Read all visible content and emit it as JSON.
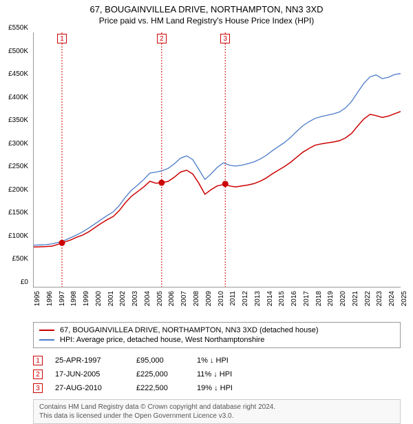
{
  "title": {
    "main": "67, BOUGAINVILLEA DRIVE, NORTHAMPTON, NN3 3XD",
    "sub": "Price paid vs. HM Land Registry's House Price Index (HPI)"
  },
  "chart": {
    "type": "line",
    "x_years": [
      1995,
      1996,
      1997,
      1998,
      1999,
      2000,
      2001,
      2002,
      2003,
      2004,
      2005,
      2006,
      2007,
      2008,
      2009,
      2010,
      2011,
      2012,
      2013,
      2014,
      2015,
      2016,
      2017,
      2018,
      2019,
      2020,
      2021,
      2022,
      2023,
      2024,
      2025
    ],
    "xlim": [
      1995,
      2025
    ],
    "ylim": [
      0,
      550000
    ],
    "ytick_step": 50000,
    "y_labels": [
      "£0",
      "£50K",
      "£100K",
      "£150K",
      "£200K",
      "£250K",
      "£300K",
      "£350K",
      "£400K",
      "£450K",
      "£500K",
      "£550K"
    ],
    "grid_color": "#999999",
    "background_color": "#ffffff",
    "series": [
      {
        "name": "property",
        "label": "67, BOUGAINVILLEA DRIVE, NORTHAMPTON, NN3 3XD (detached house)",
        "color": "#cc0000",
        "stroke_width": 1.5,
        "points": [
          [
            1995.0,
            86000
          ],
          [
            1995.5,
            86500
          ],
          [
            1996.0,
            87000
          ],
          [
            1996.5,
            88000
          ],
          [
            1997.0,
            92000
          ],
          [
            1997.3,
            95000
          ],
          [
            1998.0,
            101000
          ],
          [
            1998.5,
            107000
          ],
          [
            1999.0,
            112000
          ],
          [
            1999.5,
            119000
          ],
          [
            2000.0,
            128000
          ],
          [
            2000.5,
            137000
          ],
          [
            2001.0,
            145000
          ],
          [
            2001.5,
            152000
          ],
          [
            2002.0,
            165000
          ],
          [
            2002.5,
            182000
          ],
          [
            2003.0,
            196000
          ],
          [
            2003.5,
            206000
          ],
          [
            2004.0,
            216000
          ],
          [
            2004.5,
            228000
          ],
          [
            2005.0,
            224000
          ],
          [
            2005.5,
            225000
          ],
          [
            2006.0,
            228000
          ],
          [
            2006.5,
            237000
          ],
          [
            2007.0,
            248000
          ],
          [
            2007.5,
            252000
          ],
          [
            2008.0,
            244000
          ],
          [
            2008.5,
            224000
          ],
          [
            2009.0,
            200000
          ],
          [
            2009.5,
            210000
          ],
          [
            2010.0,
            218000
          ],
          [
            2010.5,
            221000
          ],
          [
            2010.66,
            222500
          ],
          [
            2011.0,
            218000
          ],
          [
            2011.5,
            216000
          ],
          [
            2012.0,
            218000
          ],
          [
            2012.5,
            220000
          ],
          [
            2013.0,
            223000
          ],
          [
            2013.5,
            228000
          ],
          [
            2014.0,
            235000
          ],
          [
            2014.5,
            244000
          ],
          [
            2015.0,
            252000
          ],
          [
            2015.5,
            260000
          ],
          [
            2016.0,
            269000
          ],
          [
            2016.5,
            280000
          ],
          [
            2017.0,
            291000
          ],
          [
            2017.5,
            299000
          ],
          [
            2018.0,
            306000
          ],
          [
            2018.5,
            309000
          ],
          [
            2019.0,
            311000
          ],
          [
            2019.5,
            313000
          ],
          [
            2020.0,
            316000
          ],
          [
            2020.5,
            322000
          ],
          [
            2021.0,
            332000
          ],
          [
            2021.5,
            348000
          ],
          [
            2022.0,
            363000
          ],
          [
            2022.5,
            373000
          ],
          [
            2023.0,
            370000
          ],
          [
            2023.5,
            366000
          ],
          [
            2024.0,
            369000
          ],
          [
            2024.5,
            374000
          ],
          [
            2025.0,
            379000
          ]
        ]
      },
      {
        "name": "hpi",
        "label": "HPI: Average price, detached house, West Northamptonshire",
        "color": "#4a7ac8",
        "stroke_width": 1.3,
        "points": [
          [
            1995.0,
            90000
          ],
          [
            1995.5,
            90500
          ],
          [
            1996.0,
            91000
          ],
          [
            1996.5,
            93000
          ],
          [
            1997.0,
            96000
          ],
          [
            1997.5,
            100000
          ],
          [
            1998.0,
            106000
          ],
          [
            1998.5,
            112000
          ],
          [
            1999.0,
            119000
          ],
          [
            1999.5,
            127000
          ],
          [
            2000.0,
            136000
          ],
          [
            2000.5,
            145000
          ],
          [
            2001.0,
            154000
          ],
          [
            2001.5,
            162000
          ],
          [
            2002.0,
            176000
          ],
          [
            2002.5,
            194000
          ],
          [
            2003.0,
            209000
          ],
          [
            2003.5,
            220000
          ],
          [
            2004.0,
            232000
          ],
          [
            2004.5,
            246000
          ],
          [
            2005.0,
            248000
          ],
          [
            2005.5,
            251000
          ],
          [
            2006.0,
            256000
          ],
          [
            2006.5,
            266000
          ],
          [
            2007.0,
            278000
          ],
          [
            2007.5,
            283000
          ],
          [
            2008.0,
            275000
          ],
          [
            2008.5,
            254000
          ],
          [
            2009.0,
            232000
          ],
          [
            2009.5,
            244000
          ],
          [
            2010.0,
            258000
          ],
          [
            2010.5,
            268000
          ],
          [
            2011.0,
            263000
          ],
          [
            2011.5,
            261000
          ],
          [
            2012.0,
            263000
          ],
          [
            2012.5,
            266000
          ],
          [
            2013.0,
            270000
          ],
          [
            2013.5,
            276000
          ],
          [
            2014.0,
            284000
          ],
          [
            2014.5,
            294000
          ],
          [
            2015.0,
            303000
          ],
          [
            2015.5,
            312000
          ],
          [
            2016.0,
            323000
          ],
          [
            2016.5,
            336000
          ],
          [
            2017.0,
            348000
          ],
          [
            2017.5,
            357000
          ],
          [
            2018.0,
            364000
          ],
          [
            2018.5,
            368000
          ],
          [
            2019.0,
            371000
          ],
          [
            2019.5,
            374000
          ],
          [
            2020.0,
            378000
          ],
          [
            2020.5,
            387000
          ],
          [
            2021.0,
            401000
          ],
          [
            2021.5,
            421000
          ],
          [
            2022.0,
            440000
          ],
          [
            2022.5,
            454000
          ],
          [
            2023.0,
            458000
          ],
          [
            2023.5,
            450000
          ],
          [
            2024.0,
            453000
          ],
          [
            2024.5,
            459000
          ],
          [
            2025.0,
            461000
          ]
        ]
      }
    ],
    "sales_markers": [
      {
        "index": "1",
        "year": 1997.31,
        "price": 95000,
        "color": "#cc0000"
      },
      {
        "index": "2",
        "year": 2005.46,
        "price": 225000,
        "color": "#cc0000"
      },
      {
        "index": "3",
        "year": 2010.66,
        "price": 222500,
        "color": "#cc0000"
      }
    ]
  },
  "sales": [
    {
      "index": "1",
      "date": "25-APR-1997",
      "price": "£95,000",
      "diff": "1% ↓ HPI",
      "color": "#cc0000"
    },
    {
      "index": "2",
      "date": "17-JUN-2005",
      "price": "£225,000",
      "diff": "11% ↓ HPI",
      "color": "#cc0000"
    },
    {
      "index": "3",
      "date": "27-AUG-2010",
      "price": "£222,500",
      "diff": "19% ↓ HPI",
      "color": "#cc0000"
    }
  ],
  "footer": {
    "line1": "Contains HM Land Registry data © Crown copyright and database right 2024.",
    "line2": "This data is licensed under the Open Government Licence v3.0."
  }
}
